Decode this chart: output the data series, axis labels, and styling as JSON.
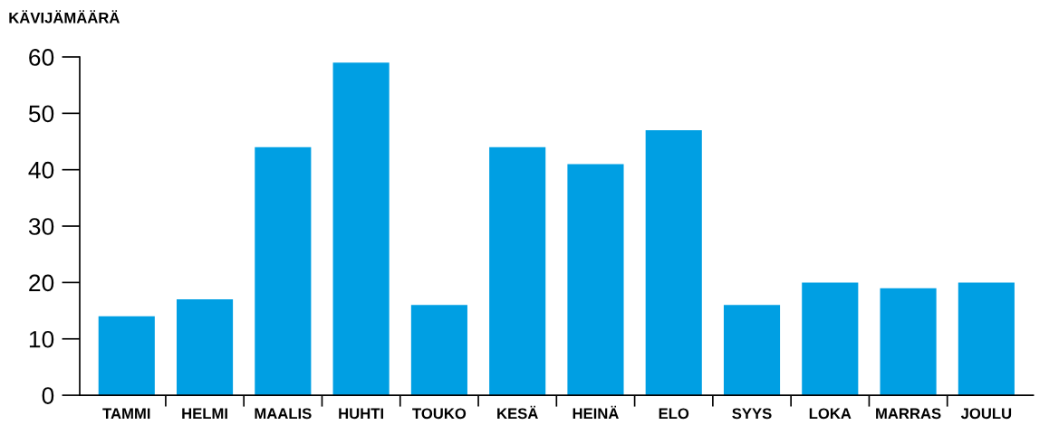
{
  "chart_data": {
    "type": "bar",
    "ylabel": "KÄVIJÄMÄÄRÄ",
    "categories": [
      "TAMMI",
      "HELMI",
      "MAALIS",
      "HUHTI",
      "TOUKO",
      "KESÄ",
      "HEINÄ",
      "ELO",
      "SYYS",
      "LOKA",
      "MARRAS",
      "JOULU"
    ],
    "values": [
      14,
      17,
      44,
      59,
      16,
      44,
      41,
      47,
      16,
      20,
      19,
      20
    ],
    "color": "#009fe3",
    "ylim": [
      0,
      60
    ],
    "yticks": [
      0,
      10,
      20,
      30,
      40,
      50,
      60
    ],
    "grid": false,
    "legend": false
  }
}
